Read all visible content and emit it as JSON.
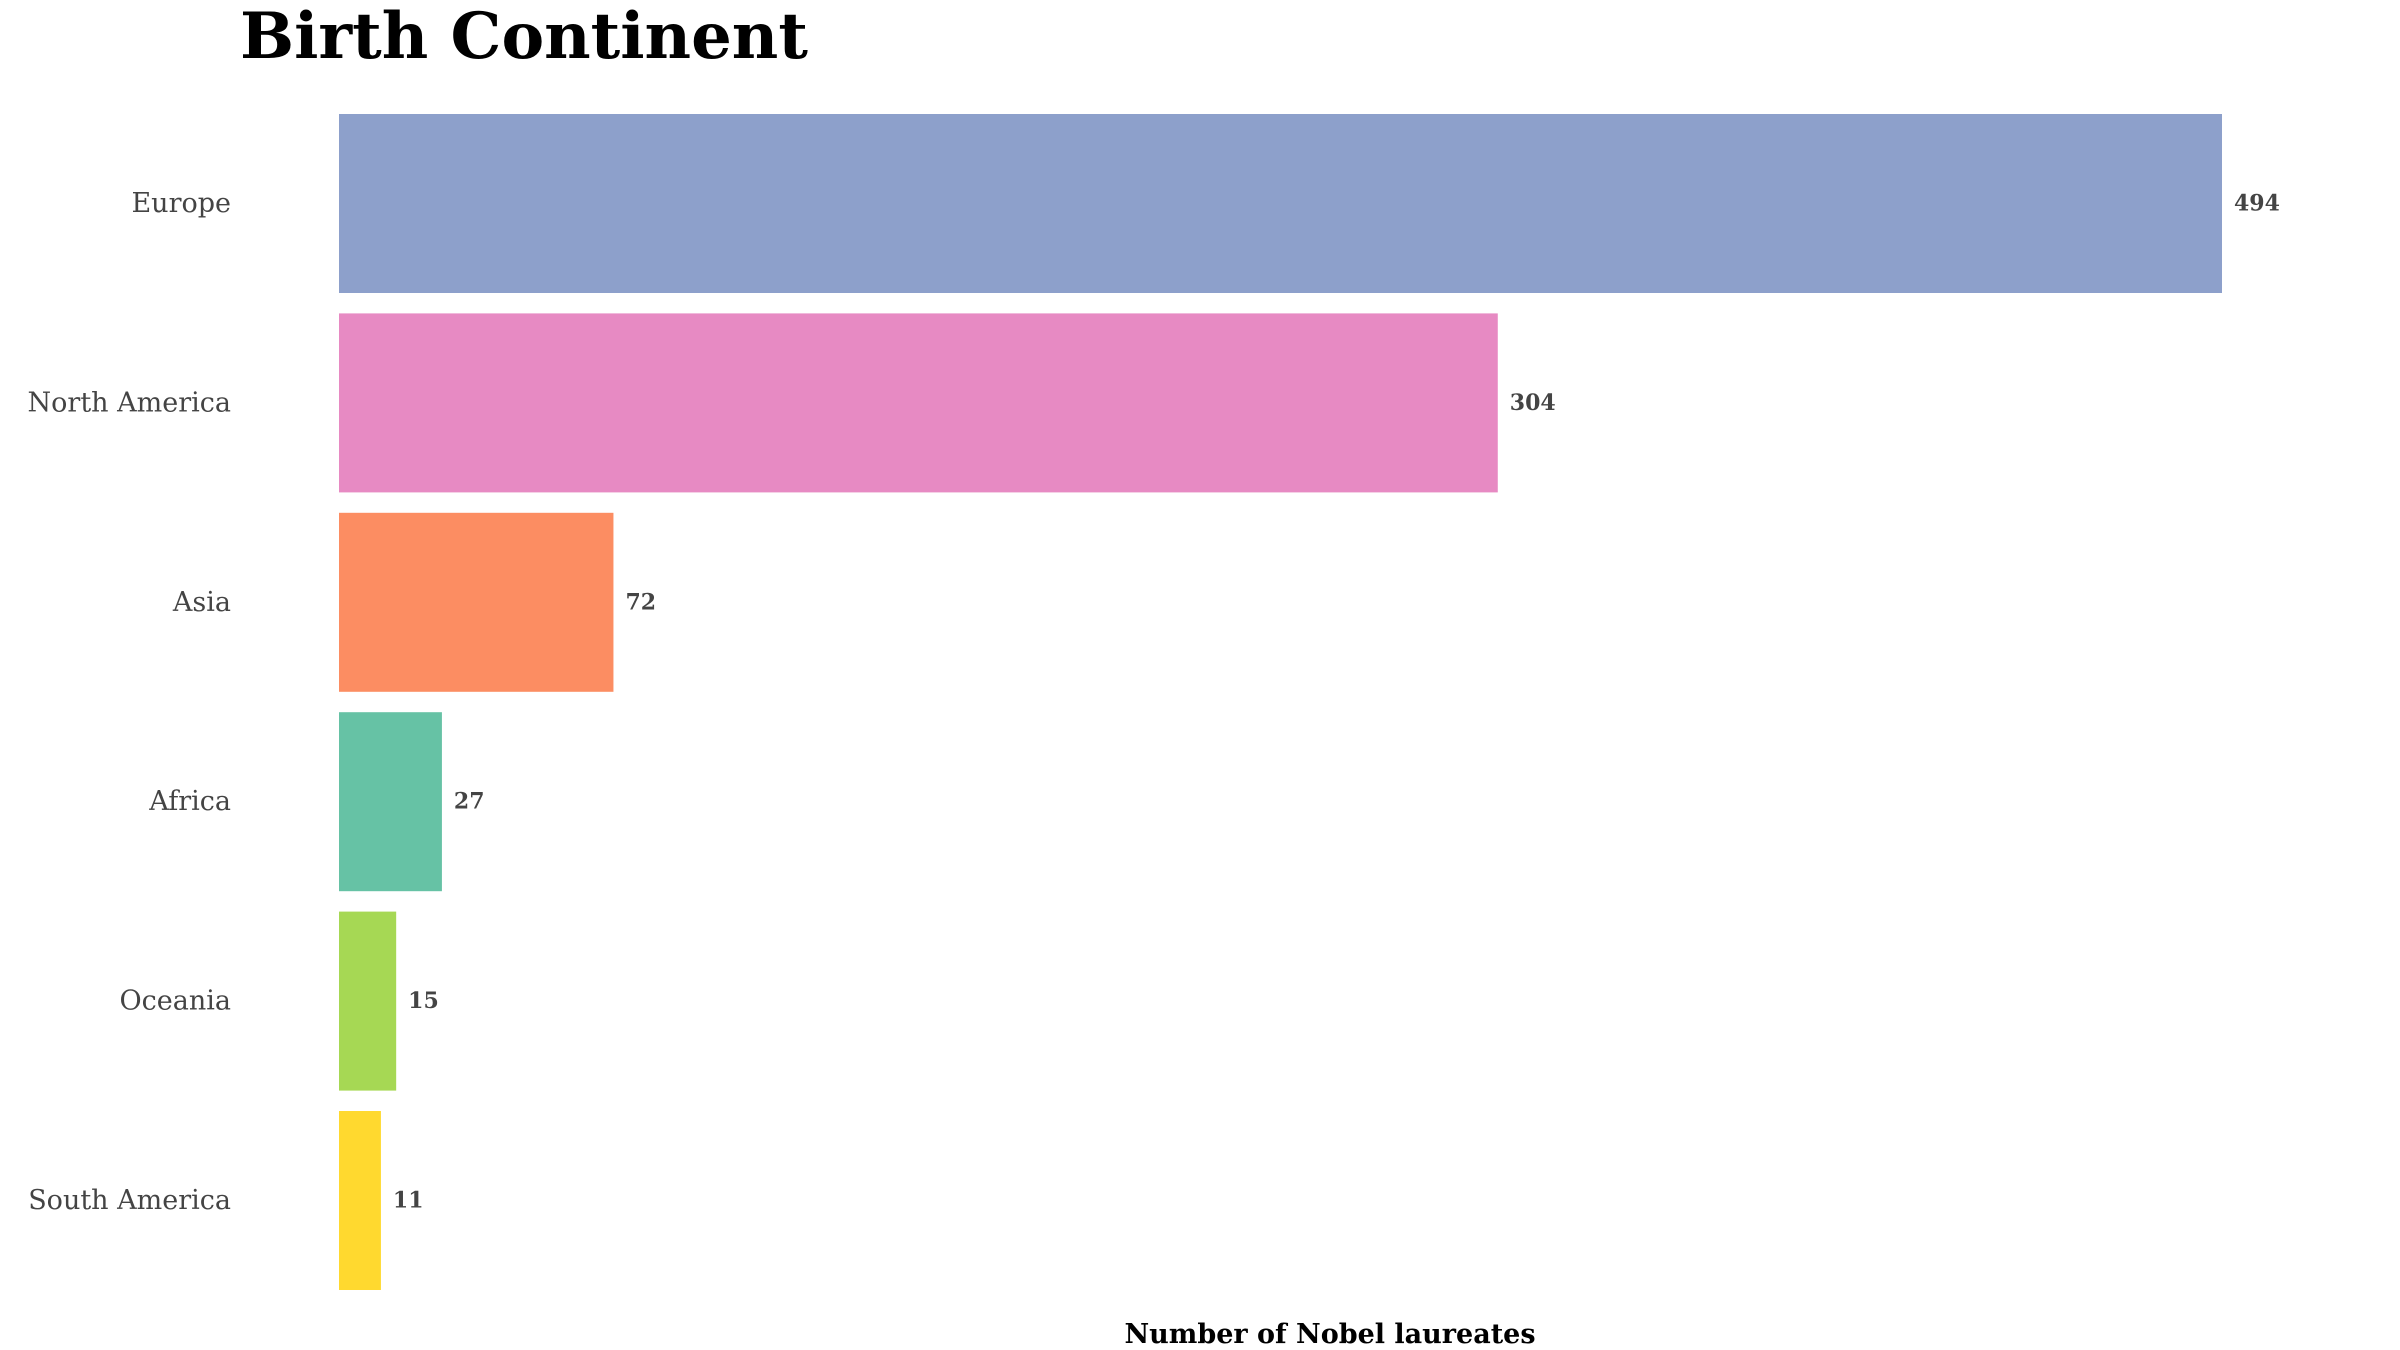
{
  "chart_data": {
    "type": "bar",
    "orientation": "horizontal",
    "title": "Birth Continent",
    "xlabel": "Number of Nobel laureates",
    "ylabel": "",
    "categories": [
      "Europe",
      "North America",
      "Asia",
      "Africa",
      "Oceania",
      "South America"
    ],
    "values": [
      494,
      304,
      72,
      27,
      15,
      11
    ],
    "colors": [
      "#8da0cb",
      "#e78ac3",
      "#fc8d62",
      "#66c2a5",
      "#a6d854",
      "#ffd92f"
    ],
    "xlim": [
      0,
      494
    ],
    "grid": false,
    "legend": "none"
  }
}
